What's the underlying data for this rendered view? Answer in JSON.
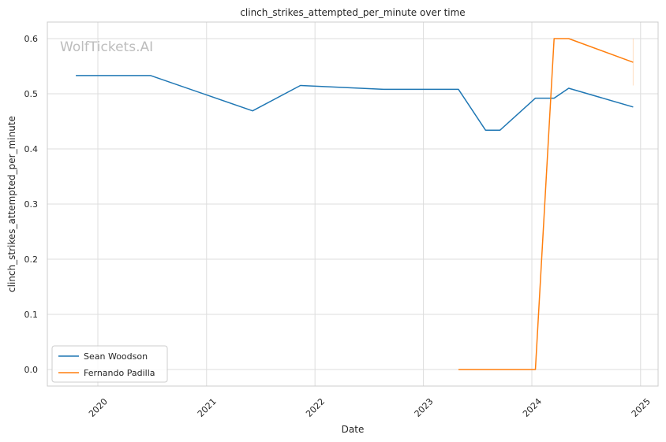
{
  "chart_data": {
    "type": "line",
    "title": "clinch_strikes_attempted_per_minute over time",
    "xlabel": "Date",
    "ylabel": "clinch_strikes_attempted_per_minute",
    "watermark": "WolfTickets.AI",
    "xlim": [
      "2019-07-15",
      "2025-03-01"
    ],
    "ylim": [
      -0.03,
      0.63
    ],
    "x_ticks": [
      "2020",
      "2021",
      "2022",
      "2023",
      "2024",
      "2025"
    ],
    "y_ticks": [
      "0.0",
      "0.1",
      "0.2",
      "0.3",
      "0.4",
      "0.5",
      "0.6"
    ],
    "grid": true,
    "legend_position": "lower-left",
    "series": [
      {
        "name": "Sean Woodson",
        "color": "#1f77b4",
        "points": [
          [
            "2019-10-19",
            0.533
          ],
          [
            "2020-06-27",
            0.533
          ],
          [
            "2021-06-05",
            0.469
          ],
          [
            "2021-11-13",
            0.515
          ],
          [
            "2022-08-20",
            0.508
          ],
          [
            "2023-04-29",
            0.508
          ],
          [
            "2023-07-29",
            0.434
          ],
          [
            "2023-09-16",
            0.434
          ],
          [
            "2024-01-13",
            0.492
          ],
          [
            "2024-03-16",
            0.492
          ],
          [
            "2024-05-04",
            0.51
          ],
          [
            "2024-12-07",
            0.476
          ]
        ]
      },
      {
        "name": "Fernando Padilla",
        "color": "#ff7f0e",
        "points": [
          [
            "2023-04-29",
            0.0
          ],
          [
            "2024-01-13",
            0.0
          ],
          [
            "2024-03-16",
            0.6
          ],
          [
            "2024-05-04",
            0.6
          ],
          [
            "2024-12-07",
            0.557
          ]
        ]
      }
    ]
  }
}
